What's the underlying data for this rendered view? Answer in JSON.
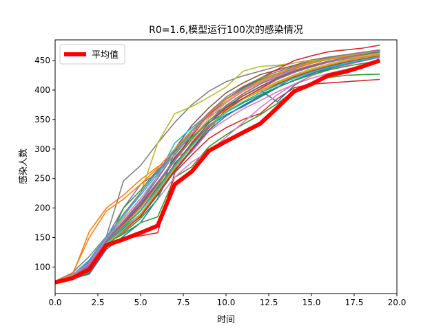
{
  "chart_data": {
    "type": "line",
    "title": "R0=1.6,模型运行100次的感染情况",
    "xlabel": "时间",
    "ylabel": "感染人数",
    "xlim": [
      0,
      20
    ],
    "ylim": [
      55,
      485
    ],
    "xticks": [
      0.0,
      2.5,
      5.0,
      7.5,
      10.0,
      12.5,
      15.0,
      17.5,
      20.0
    ],
    "xtick_labels": [
      "0.0",
      "2.5",
      "5.0",
      "7.5",
      "10.0",
      "12.5",
      "15.0",
      "17.5",
      "20.0"
    ],
    "yticks": [
      100,
      150,
      200,
      250,
      300,
      350,
      400,
      450
    ],
    "ytick_labels": [
      "100",
      "150",
      "200",
      "250",
      "300",
      "350",
      "400",
      "450"
    ],
    "grid": false,
    "legend": {
      "position": "upper-left",
      "entries": [
        {
          "label": "平均值",
          "color": "#ff0000"
        }
      ]
    },
    "x": [
      0,
      1,
      2,
      3,
      4,
      5,
      6,
      7,
      8,
      9,
      10,
      11,
      12,
      13,
      14,
      15,
      16,
      17,
      18,
      19
    ],
    "mean": {
      "name": "平均值",
      "color": "#ff0000",
      "values": [
        74,
        81,
        96,
        137,
        147,
        158,
        170,
        240,
        262,
        297,
        313,
        328,
        343,
        370,
        398,
        410,
        425,
        431,
        440,
        450
      ]
    },
    "series": [
      {
        "color": "#1f77b4",
        "values": [
          75,
          80,
          88,
          130,
          152,
          175,
          216,
          276,
          305,
          338,
          358,
          372,
          388,
          404,
          423,
          432,
          441,
          449,
          456,
          462
        ]
      },
      {
        "color": "#ff7f0e",
        "values": [
          76,
          85,
          160,
          200,
          222,
          248,
          270,
          285,
          300,
          331,
          368,
          393,
          410,
          426,
          436,
          445,
          452,
          458,
          463,
          468
        ]
      },
      {
        "color": "#2ca02c",
        "values": [
          75,
          80,
          90,
          140,
          156,
          175,
          185,
          252,
          270,
          304,
          324,
          342,
          358,
          377,
          399,
          413,
          421,
          425,
          426,
          427
        ]
      },
      {
        "color": "#d62728",
        "values": [
          74,
          82,
          92,
          140,
          148,
          153,
          158,
          260,
          290,
          318,
          336,
          350,
          360,
          385,
          404,
          410,
          412,
          414,
          416,
          418
        ]
      },
      {
        "color": "#9467bd",
        "values": [
          76,
          86,
          110,
          150,
          200,
          240,
          260,
          290,
          330,
          355,
          372,
          390,
          405,
          419,
          430,
          440,
          448,
          455,
          461,
          466
        ]
      },
      {
        "color": "#8c564b",
        "values": [
          75,
          83,
          100,
          145,
          175,
          210,
          250,
          300,
          340,
          370,
          395,
          412,
          426,
          434,
          442,
          450,
          455,
          459,
          463,
          467
        ]
      },
      {
        "color": "#e377c2",
        "values": [
          75,
          82,
          95,
          142,
          170,
          195,
          230,
          270,
          295,
          330,
          350,
          368,
          382,
          397,
          410,
          420,
          428,
          435,
          441,
          447
        ]
      },
      {
        "color": "#7f7f7f",
        "values": [
          76,
          90,
          118,
          152,
          246,
          272,
          310,
          345,
          375,
          398,
          414,
          424,
          432,
          440,
          446,
          451,
          456,
          460,
          464,
          468
        ]
      },
      {
        "color": "#bcbd22",
        "values": [
          75,
          82,
          96,
          150,
          185,
          225,
          310,
          360,
          372,
          388,
          405,
          432,
          440,
          442,
          446,
          450,
          453,
          456,
          459,
          462
        ]
      },
      {
        "color": "#17becf",
        "values": [
          75,
          83,
          105,
          148,
          172,
          210,
          255,
          310,
          336,
          360,
          380,
          398,
          412,
          425,
          434,
          441,
          448,
          453,
          457,
          461
        ]
      },
      {
        "color": "#1f77b4",
        "values": [
          76,
          84,
          102,
          144,
          168,
          195,
          236,
          286,
          318,
          348,
          370,
          386,
          400,
          380,
          408,
          425,
          436,
          444,
          450,
          455
        ]
      },
      {
        "color": "#ff7f0e",
        "values": [
          75,
          82,
          98,
          142,
          166,
          188,
          226,
          266,
          312,
          344,
          368,
          384,
          398,
          412,
          424,
          434,
          442,
          449,
          455,
          460
        ]
      },
      {
        "color": "#2ca02c",
        "values": [
          74,
          81,
          96,
          138,
          200,
          230,
          265,
          290,
          325,
          360,
          385,
          402,
          418,
          428,
          438,
          446,
          452,
          457,
          461,
          465
        ]
      },
      {
        "color": "#d62728",
        "values": [
          75,
          83,
          100,
          144,
          174,
          205,
          242,
          284,
          322,
          358,
          384,
          404,
          420,
          435,
          450,
          458,
          465,
          468,
          471,
          476
        ]
      },
      {
        "color": "#9467bd",
        "values": [
          76,
          85,
          108,
          150,
          190,
          226,
          262,
          298,
          332,
          362,
          384,
          400,
          414,
          426,
          437,
          446,
          453,
          459,
          464,
          468
        ]
      },
      {
        "color": "#8c564b",
        "values": [
          75,
          82,
          97,
          141,
          165,
          190,
          228,
          270,
          308,
          340,
          362,
          380,
          395,
          410,
          422,
          432,
          440,
          447,
          453,
          458
        ]
      },
      {
        "color": "#e377c2",
        "values": [
          74,
          81,
          94,
          139,
          160,
          182,
          215,
          252,
          278,
          296,
          320,
          345,
          370,
          392,
          410,
          424,
          434,
          442,
          449,
          455
        ]
      },
      {
        "color": "#7f7f7f",
        "values": [
          75,
          84,
          104,
          146,
          178,
          212,
          250,
          292,
          330,
          362,
          388,
          406,
          420,
          431,
          440,
          448,
          454,
          459,
          463,
          467
        ]
      },
      {
        "color": "#bcbd22",
        "values": [
          75,
          83,
          99,
          143,
          170,
          200,
          238,
          280,
          318,
          352,
          378,
          398,
          414,
          427,
          438,
          447,
          453,
          458,
          462,
          466
        ]
      },
      {
        "color": "#17becf",
        "values": [
          76,
          86,
          112,
          152,
          188,
          222,
          258,
          296,
          330,
          360,
          384,
          402,
          416,
          428,
          438,
          446,
          452,
          457,
          461,
          465
        ]
      },
      {
        "color": "#1f77b4",
        "values": [
          75,
          82,
          96,
          140,
          164,
          185,
          222,
          262,
          298,
          332,
          356,
          374,
          390,
          404,
          417,
          428,
          437,
          444,
          450,
          456
        ]
      },
      {
        "color": "#ff7f0e",
        "values": [
          76,
          88,
          150,
          195,
          215,
          240,
          268,
          300,
          332,
          360,
          384,
          400,
          416,
          428,
          438,
          446,
          452,
          457,
          461,
          464
        ]
      },
      {
        "color": "#2ca02c",
        "values": [
          75,
          81,
          95,
          138,
          158,
          182,
          215,
          296,
          320,
          345,
          362,
          378,
          392,
          405,
          416,
          426,
          434,
          440,
          445,
          450
        ]
      },
      {
        "color": "#d62728",
        "values": [
          74,
          83,
          98,
          140,
          162,
          186,
          224,
          264,
          300,
          336,
          366,
          386,
          402,
          418,
          430,
          440,
          448,
          454,
          460,
          465
        ]
      },
      {
        "color": "#9467bd",
        "values": [
          75,
          84,
          102,
          145,
          176,
          208,
          244,
          282,
          316,
          348,
          372,
          390,
          405,
          418,
          430,
          439,
          447,
          453,
          458,
          462
        ]
      },
      {
        "color": "#8c564b",
        "values": [
          75,
          82,
          99,
          142,
          168,
          196,
          234,
          274,
          310,
          344,
          370,
          390,
          406,
          420,
          432,
          441,
          449,
          455,
          460,
          464
        ]
      },
      {
        "color": "#e377c2",
        "values": [
          76,
          85,
          106,
          148,
          182,
          216,
          254,
          292,
          326,
          356,
          380,
          398,
          412,
          424,
          434,
          442,
          449,
          454,
          458,
          462
        ]
      },
      {
        "color": "#7f7f7f",
        "values": [
          75,
          83,
          101,
          144,
          172,
          202,
          240,
          280,
          316,
          348,
          374,
          394,
          410,
          422,
          433,
          442,
          449,
          455,
          460,
          464
        ]
      },
      {
        "color": "#bcbd22",
        "values": [
          74,
          81,
          95,
          139,
          163,
          190,
          228,
          268,
          304,
          338,
          364,
          384,
          400,
          414,
          426,
          436,
          444,
          451,
          457,
          462
        ]
      },
      {
        "color": "#17becf",
        "values": [
          75,
          82,
          98,
          141,
          167,
          195,
          232,
          272,
          306,
          338,
          362,
          380,
          395,
          408,
          420,
          430,
          438,
          445,
          451,
          456
        ]
      }
    ]
  }
}
